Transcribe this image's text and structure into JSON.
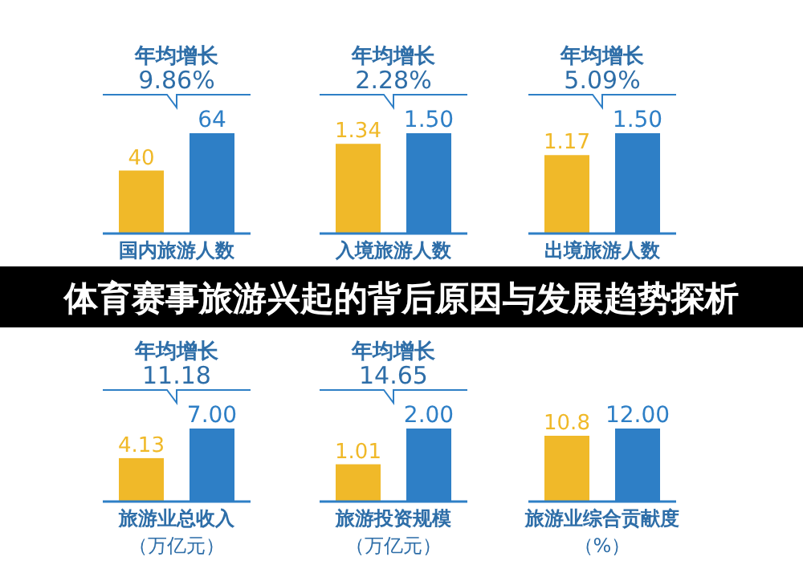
{
  "chart_data": [
    {
      "type": "bar",
      "categories": [
        null,
        null
      ],
      "values": [
        40,
        64
      ],
      "colors": [
        "#f0b929",
        "#2e7fc6"
      ],
      "data_labels": true,
      "xlabel": "国内旅游人数",
      "annotations": [
        "年均增长",
        "9.86%"
      ]
    },
    {
      "type": "bar",
      "categories": [
        null,
        null
      ],
      "values": [
        1.34,
        1.5
      ],
      "value_labels": [
        "1.34",
        "1.50"
      ],
      "colors": [
        "#f0b929",
        "#2e7fc6"
      ],
      "xlabel": "入境旅游人数",
      "annotations": [
        "年均增长",
        "2.28%"
      ]
    },
    {
      "type": "bar",
      "categories": [
        null,
        null
      ],
      "values": [
        1.17,
        1.5
      ],
      "value_labels": [
        "1.17",
        "1.50"
      ],
      "colors": [
        "#f0b929",
        "#2e7fc6"
      ],
      "xlabel": "出境旅游人数",
      "annotations": [
        "年均增长",
        "5.09%"
      ]
    },
    {
      "type": "bar",
      "categories": [
        null,
        null
      ],
      "values": [
        4.13,
        7.0
      ],
      "value_labels": [
        "4.13",
        "7.00"
      ],
      "colors": [
        "#f0b929",
        "#2e7fc6"
      ],
      "xlabel": "旅游业总收入",
      "subtitle": "（万亿元）",
      "annotations": [
        "年均增长",
        "11.18"
      ]
    },
    {
      "type": "bar",
      "categories": [
        null,
        null
      ],
      "values": [
        1.01,
        2.0
      ],
      "value_labels": [
        "1.01",
        "2.00"
      ],
      "colors": [
        "#f0b929",
        "#2e7fc6"
      ],
      "xlabel": "旅游投资规模",
      "subtitle": "（万亿元）",
      "annotations": [
        "年均增长",
        "14.65"
      ]
    },
    {
      "type": "bar",
      "categories": [
        null,
        null
      ],
      "values": [
        10.8,
        12.0
      ],
      "value_labels": [
        "10.8",
        "12.00"
      ],
      "colors": [
        "#f0b929",
        "#2e7fc6"
      ],
      "xlabel": "旅游业综合贡献度",
      "subtitle": "（%）"
    },
    {
      "type": "other",
      "title": "体育赛事旅游兴起的背后原因与发展趋势探析"
    }
  ]
}
